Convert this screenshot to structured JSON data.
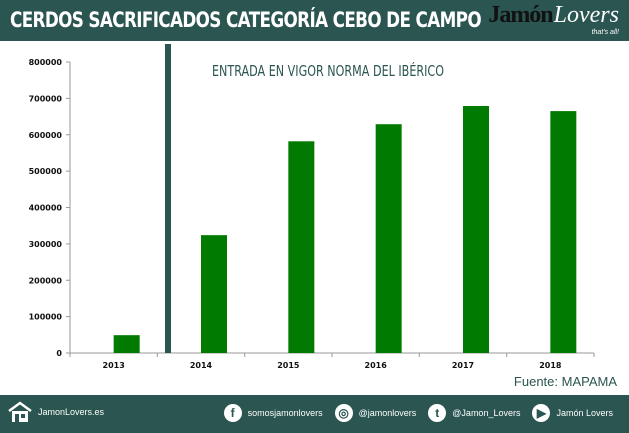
{
  "header": {
    "title": "CERDOS SACRIFICADOS CATEGORÍA CEBO DE CAMPO",
    "logo_text": "JamónLovers",
    "logo_main": "Jamón",
    "logo_accent": "Lovers",
    "logo_tagline": "that's all!"
  },
  "chart_data": {
    "type": "bar",
    "title": "",
    "categories": [
      "2013",
      "2014",
      "2015",
      "2016",
      "2017",
      "2018"
    ],
    "values": [
      49000,
      324000,
      582000,
      629000,
      679000,
      665000
    ],
    "ylim": [
      0,
      800000
    ],
    "yticks": [
      "0",
      "100000",
      "200000",
      "300000",
      "400000",
      "500000",
      "600000",
      "700000",
      "800000"
    ],
    "grid": false,
    "bar_color": "#007a00",
    "annotation": {
      "text": "ENTRADA EN VIGOR NORMA DEL IBÉRICO",
      "marker": "vertical line between 2013 and 2014",
      "color": "#2a5550"
    }
  },
  "source": "Fuente: MAPAMA",
  "footer": {
    "website": "JamonLovers.es",
    "facebook": "somosjamonlovers",
    "instagram": "@jamonlovers",
    "twitter": "@Jamon_Lovers",
    "youtube": "Jamón Lovers"
  }
}
